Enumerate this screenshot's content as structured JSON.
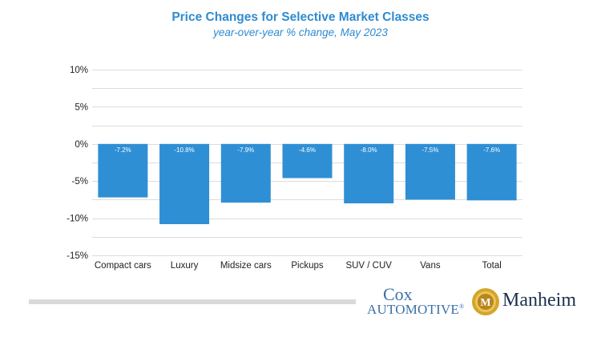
{
  "chart_data": {
    "type": "bar",
    "title": "Price Changes for Selective Market Classes",
    "subtitle": "year-over-year % change, May 2023",
    "categories": [
      "Compact cars",
      "Luxury",
      "Midsize cars",
      "Pickups",
      "SUV / CUV",
      "Vans",
      "Total"
    ],
    "values": [
      -7.2,
      -10.8,
      -7.9,
      -4.6,
      -8.0,
      -7.5,
      -7.6
    ],
    "data_labels": [
      "-7.2%",
      "-10.8%",
      "-7.9%",
      "-4.6%",
      "-8.0%",
      "-7.5%",
      "-7.6%"
    ],
    "yticks": [
      10,
      5,
      0,
      -5,
      -10,
      -15
    ],
    "ytick_labels": [
      "10%",
      "5%",
      "0%",
      "-5%",
      "-10%",
      "-15%"
    ],
    "ylim": [
      -15,
      10
    ],
    "gridlines": true,
    "bar_color": "#2e8fd4",
    "xlabel": "",
    "ylabel": ""
  },
  "footer": {
    "cox_line1": "Cox",
    "cox_line2": "AUTOMOTIVE",
    "cox_mark": "®",
    "manheim": "Manheim",
    "manheim_icon_letter": "M"
  },
  "colors": {
    "title": "#2f8bd0",
    "grid": "#dcdcdc",
    "bar": "#2e8fd4",
    "cox": "#3b6fa8",
    "manheim": "#1d2f4f",
    "gold": "#d4a52a"
  }
}
